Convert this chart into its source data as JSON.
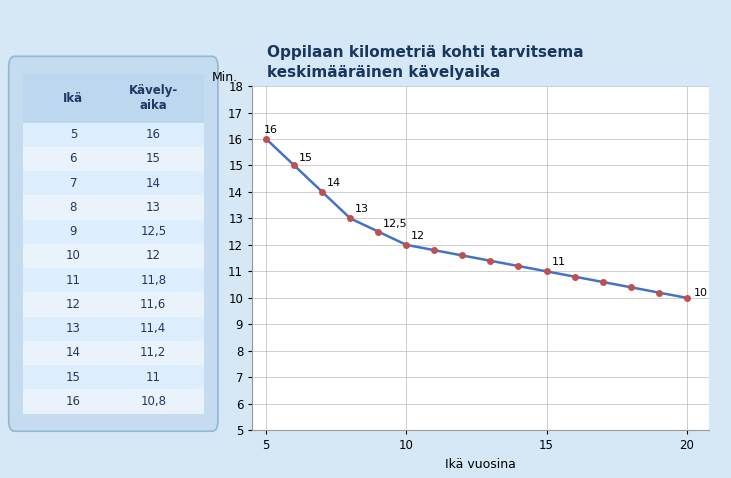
{
  "title_line1": "Oppilaan kilometriä kohti tarvitsema",
  "title_line2": "keskimääräinen kävelyaika",
  "xlabel": "Ikä vuosina",
  "ylabel": "Min.",
  "x_data": [
    5,
    6,
    7,
    8,
    9,
    10,
    11,
    12,
    13,
    14,
    15,
    16,
    17,
    18,
    19,
    20
  ],
  "y_data": [
    16,
    15,
    14,
    13,
    12.5,
    12,
    11.8,
    11.6,
    11.4,
    11.2,
    11,
    10.8,
    10.6,
    10.4,
    10.2,
    10
  ],
  "annotated_points": {
    "5": "16",
    "6": "15",
    "7": "14",
    "8": "13",
    "9": "12,5",
    "10": "12",
    "15": "11",
    "20": "10"
  },
  "xlim": [
    4.5,
    20.8
  ],
  "ylim": [
    5,
    18
  ],
  "xticks": [
    5,
    10,
    15,
    20
  ],
  "yticks": [
    5,
    6,
    7,
    8,
    9,
    10,
    11,
    12,
    13,
    14,
    15,
    16,
    17,
    18
  ],
  "line_color": "#4472C4",
  "marker_color": "#C0504D",
  "marker_size": 4,
  "line_width": 1.8,
  "grid_color": "#BBBBBB",
  "bg_color": "#FFFFFF",
  "outer_bg": "#D6E8F5",
  "title_color": "#17375E",
  "title_fontsize": 11,
  "axis_label_fontsize": 9,
  "table_header": [
    "Ikä",
    "Kävely-\naika"
  ],
  "table_ages": [
    5,
    6,
    7,
    8,
    9,
    10,
    11,
    12,
    13,
    14,
    15,
    16
  ],
  "table_times": [
    "16",
    "15",
    "14",
    "13",
    "12,5",
    "12",
    "11,8",
    "11,6",
    "11,4",
    "11,2",
    "11",
    "10,8"
  ],
  "annotation_fontsize": 8,
  "tick_fontsize": 8.5,
  "table_bg": "#C5DCF0",
  "table_header_bg": "#BDD7EE",
  "table_row_even": "#DDEEFF",
  "table_row_odd": "#EAF3FB",
  "table_text_color": "#1F3864",
  "table_border_color": "#90B8D4"
}
